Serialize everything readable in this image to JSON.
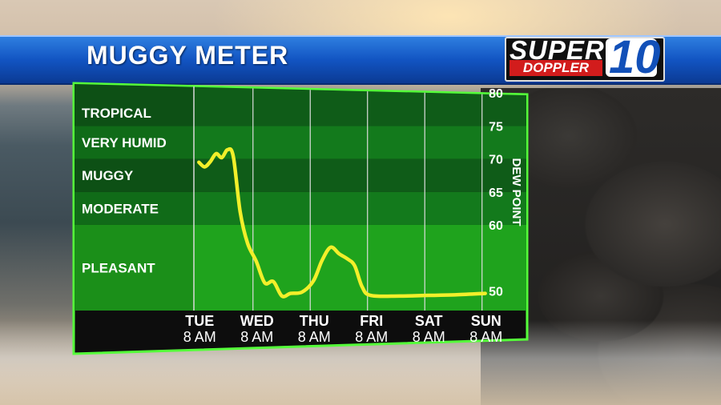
{
  "header": {
    "title": "MUGGY METER"
  },
  "logo": {
    "line1": "SUPER",
    "line2": "DOPPLER",
    "number": "10"
  },
  "colors": {
    "band_dark": "#0f5c18",
    "band_mid": "#137a1c",
    "band_light": "#1fa31d",
    "line": "#f2ef2a",
    "frame": "#55ff3a",
    "axis_bar": "#0a0a0a"
  },
  "chart_data": {
    "type": "line",
    "ylabel": "DEW POINT",
    "ylim": [
      47,
      81
    ],
    "y_ticks": [
      {
        "label": "80",
        "value": 80
      },
      {
        "label": "75",
        "value": 75
      },
      {
        "label": "70",
        "value": 70
      },
      {
        "label": "65",
        "value": 65
      },
      {
        "label": "60",
        "value": 60
      },
      {
        "label": "50",
        "value": 50
      }
    ],
    "categories": [
      {
        "name": "TROPICAL",
        "min": 75,
        "max": 81
      },
      {
        "name": "VERY HUMID",
        "min": 70,
        "max": 75
      },
      {
        "name": "MUGGY",
        "min": 65,
        "max": 70
      },
      {
        "name": "MODERATE",
        "min": 60,
        "max": 65
      },
      {
        "name": "PLEASANT",
        "min": 47,
        "max": 60
      }
    ],
    "x_labels": [
      {
        "day": "TUE",
        "time": "8 AM"
      },
      {
        "day": "WED",
        "time": "8 AM"
      },
      {
        "day": "THU",
        "time": "8 AM"
      },
      {
        "day": "FRI",
        "time": "8 AM"
      },
      {
        "day": "SAT",
        "time": "8 AM"
      },
      {
        "day": "SUN",
        "time": "8 AM"
      }
    ],
    "xlim": [
      -0.06,
      5.06
    ],
    "series": [
      {
        "points": [
          [
            0.0,
            69.5
          ],
          [
            0.1,
            68.8
          ],
          [
            0.2,
            69.6
          ],
          [
            0.3,
            70.8
          ],
          [
            0.4,
            70.2
          ],
          [
            0.5,
            71.4
          ],
          [
            0.6,
            70.4
          ],
          [
            0.72,
            62.0
          ],
          [
            0.85,
            57.2
          ],
          [
            1.0,
            54.5
          ],
          [
            1.15,
            51.2
          ],
          [
            1.3,
            51.4
          ],
          [
            1.45,
            49.2
          ],
          [
            1.6,
            49.6
          ],
          [
            1.8,
            49.8
          ],
          [
            2.0,
            51.5
          ],
          [
            2.15,
            54.6
          ],
          [
            2.3,
            56.6
          ],
          [
            2.45,
            55.6
          ],
          [
            2.6,
            54.8
          ],
          [
            2.72,
            53.8
          ],
          [
            2.85,
            50.6
          ],
          [
            3.0,
            49.3
          ],
          [
            3.5,
            49.2
          ],
          [
            4.0,
            49.3
          ],
          [
            4.5,
            49.4
          ],
          [
            5.0,
            49.6
          ]
        ]
      }
    ]
  }
}
